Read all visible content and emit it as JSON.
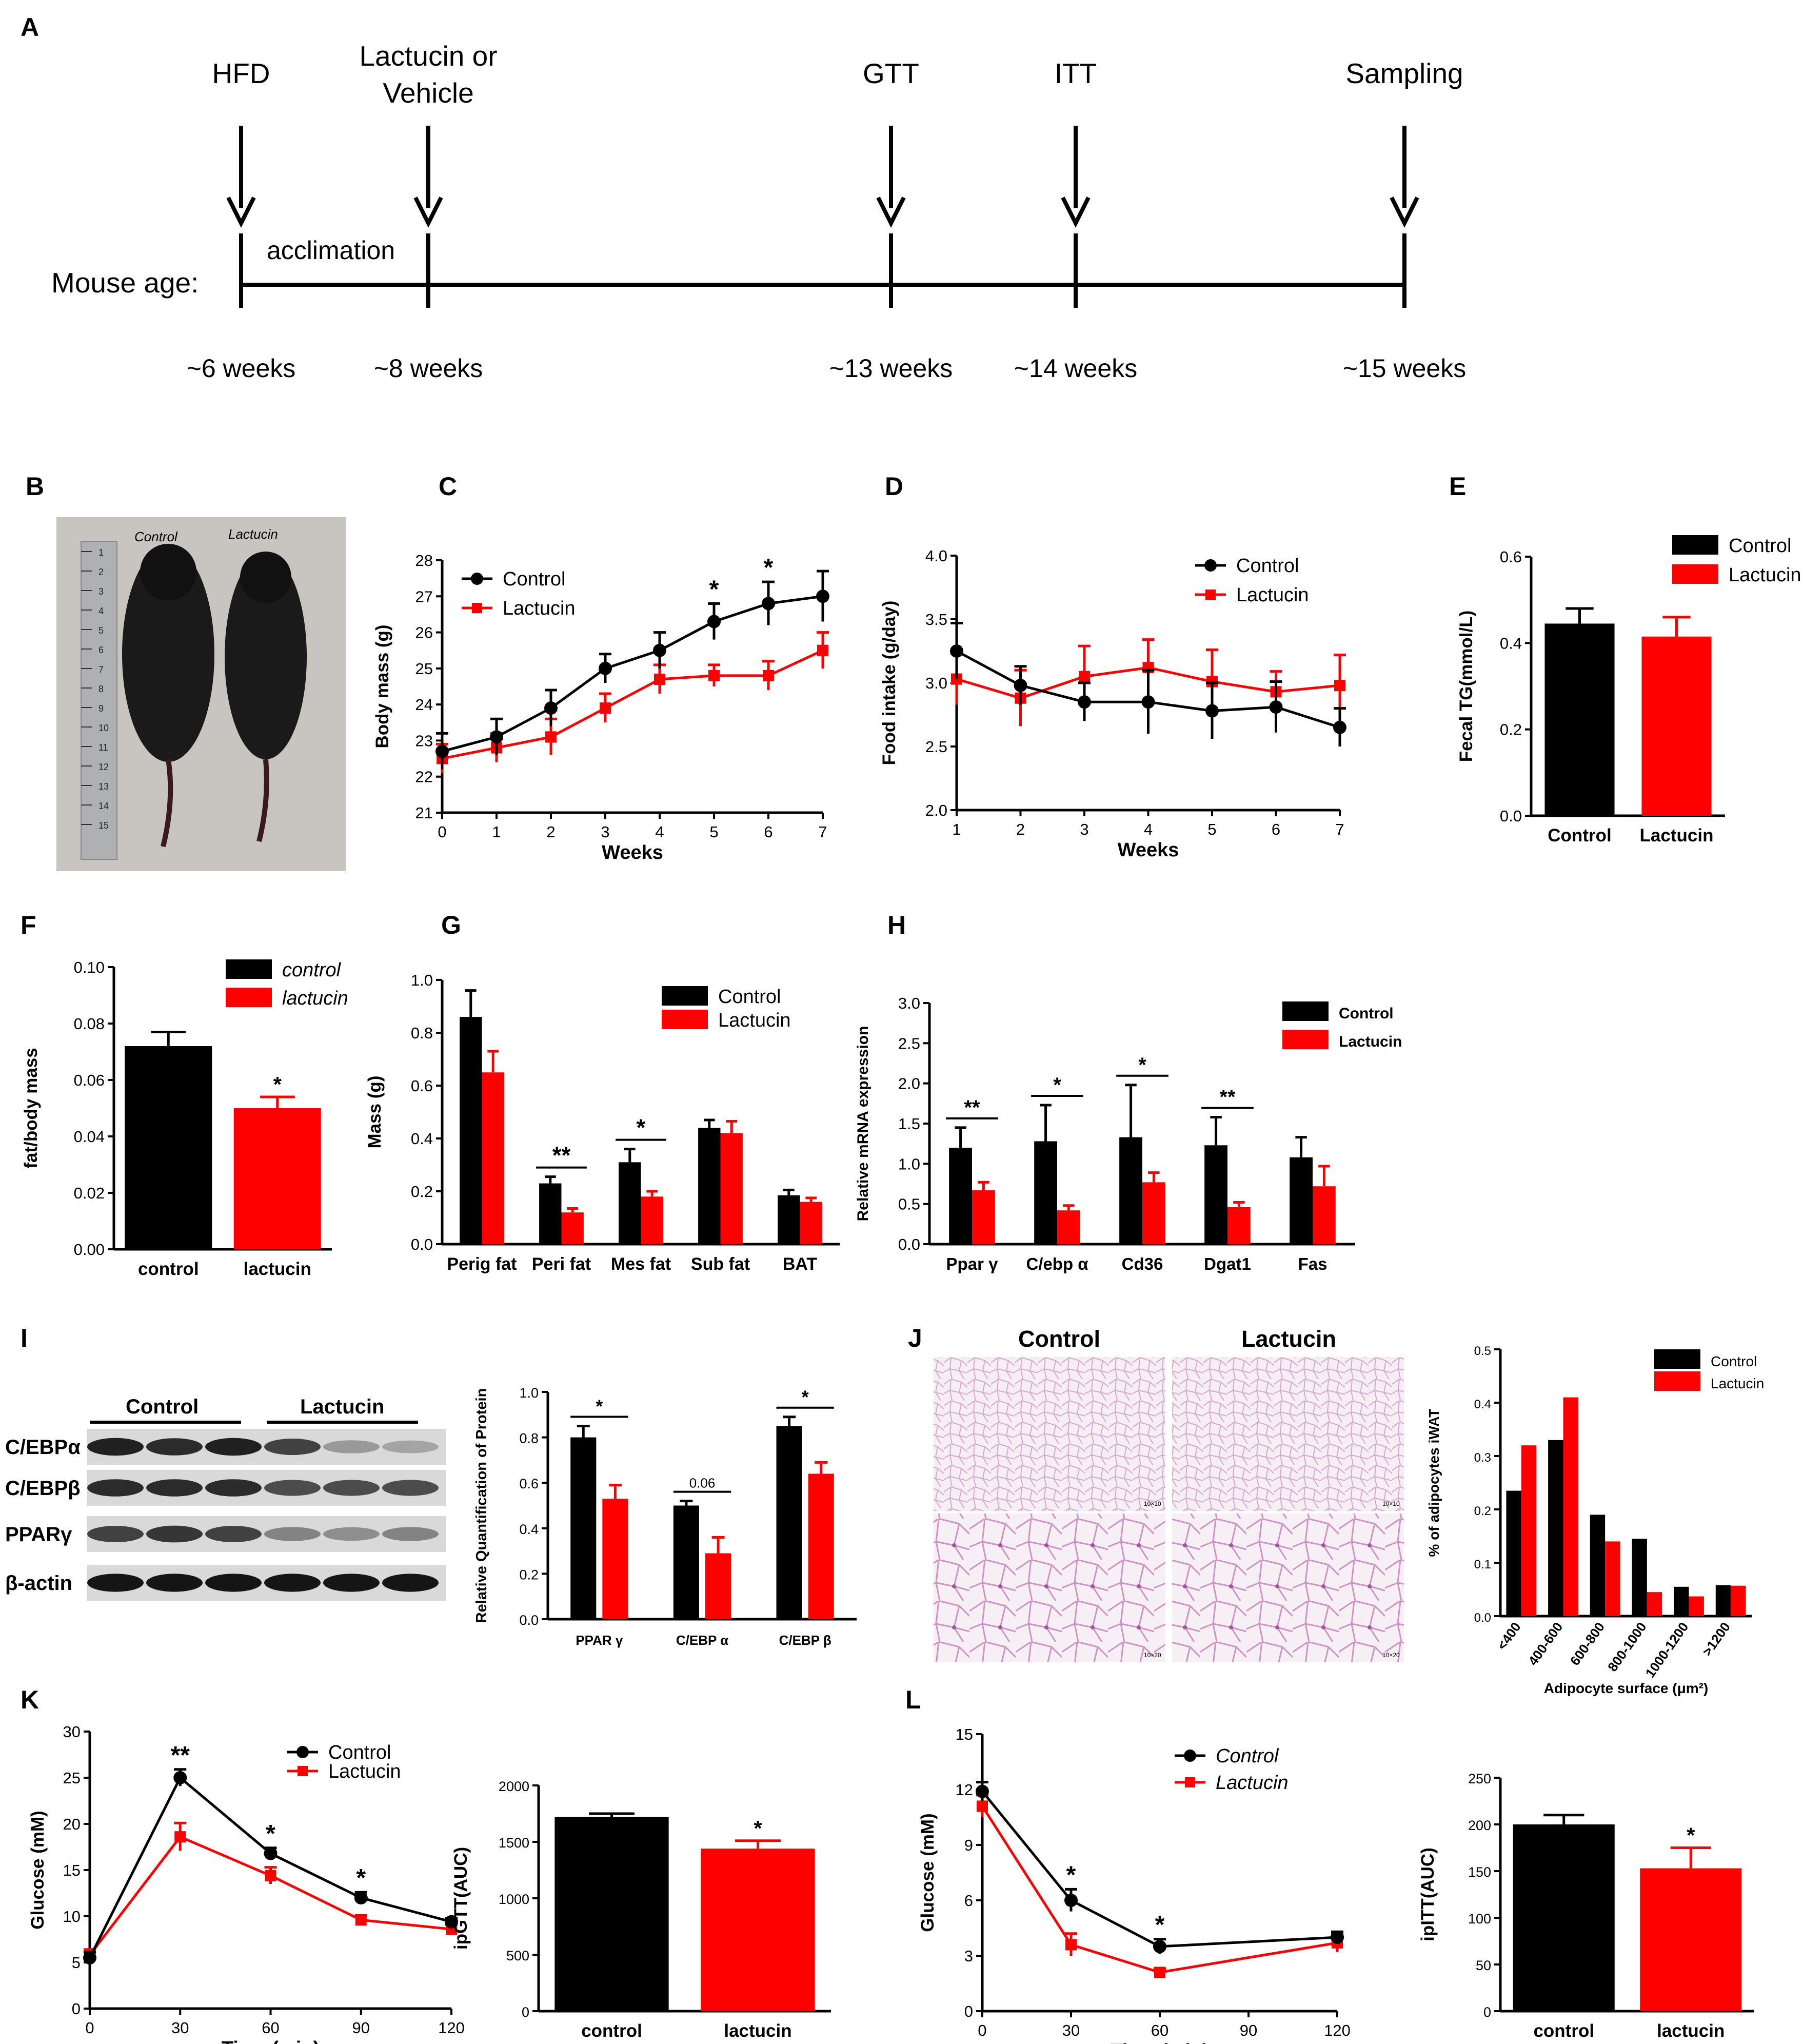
{
  "colors": {
    "control": "#000000",
    "lactucin": "#ff0000"
  },
  "panel_labels": {
    "A": "A",
    "B": "B",
    "C": "C",
    "D": "D",
    "E": "E",
    "F": "F",
    "G": "G",
    "H": "H",
    "I": "I",
    "J": "J",
    "K": "K",
    "L": "L"
  },
  "timeline": {
    "axis_label": "Mouse age:",
    "acclimation": "acclimation",
    "events": [
      {
        "top1": "HFD",
        "top2": "",
        "age": "~6 weeks",
        "week": 6
      },
      {
        "top1": "Lactucin or",
        "top2": "Vehicle",
        "age": "~8 weeks",
        "week": 8
      },
      {
        "top1": "GTT",
        "top2": "",
        "age": "~13 weeks",
        "week": 13
      },
      {
        "top1": "ITT",
        "top2": "",
        "age": "~14 weeks",
        "week": 14
      },
      {
        "top1": "Sampling",
        "top2": "",
        "age": "~15 weeks",
        "week": 15
      }
    ]
  },
  "photo": {
    "left_label": "Control",
    "right_label": "Lactucin",
    "ruler_marks": [
      "1",
      "2",
      "3",
      "4",
      "5",
      "6",
      "7",
      "8",
      "9",
      "10",
      "11",
      "12",
      "13",
      "14",
      "15"
    ]
  },
  "western": {
    "group_control": "Control",
    "group_lactucin": "Lactucin",
    "rows": [
      {
        "label": "C/EBPα",
        "intensities": [
          0.9,
          0.85,
          0.9,
          0.75,
          0.35,
          0.3
        ]
      },
      {
        "label": "C/EBPβ",
        "intensities": [
          0.85,
          0.85,
          0.85,
          0.7,
          0.7,
          0.7
        ]
      },
      {
        "label": "PPARγ",
        "intensities": [
          0.75,
          0.8,
          0.75,
          0.45,
          0.4,
          0.45
        ]
      },
      {
        "label": "β-actin",
        "intensities": [
          0.95,
          0.95,
          0.95,
          0.95,
          0.95,
          0.95
        ]
      }
    ]
  },
  "histology": {
    "col_control": "Control",
    "col_lactucin": "Lactucin",
    "mag_top": "10×10",
    "mag_bottom": "10×20"
  },
  "chart_data": [
    {
      "id": "C",
      "type": "line",
      "xlabel": "Weeks",
      "ylabel": "Body mass (g)",
      "x": [
        0,
        1,
        2,
        3,
        4,
        5,
        6,
        7
      ],
      "xlim": [
        0,
        7
      ],
      "ylim": [
        21,
        28
      ],
      "xticks": [
        "0",
        "1",
        "2",
        "3",
        "4",
        "5",
        "6",
        "7"
      ],
      "yticks": [
        "21",
        "22",
        "23",
        "24",
        "25",
        "26",
        "27",
        "28"
      ],
      "series": [
        {
          "name": "Control",
          "values": [
            22.7,
            23.1,
            23.9,
            25.0,
            25.5,
            26.3,
            26.8,
            27.0
          ],
          "err": [
            0.5,
            0.5,
            0.5,
            0.4,
            0.5,
            0.5,
            0.6,
            0.7
          ]
        },
        {
          "name": "Lactucin",
          "values": [
            22.5,
            22.8,
            23.1,
            23.9,
            24.7,
            24.8,
            24.8,
            25.5
          ],
          "err": [
            0.4,
            0.4,
            0.5,
            0.4,
            0.4,
            0.3,
            0.4,
            0.5
          ]
        }
      ],
      "annotations": [
        {
          "x": 5,
          "text": "*"
        },
        {
          "x": 6,
          "text": "*"
        }
      ],
      "legend": "top-left"
    },
    {
      "id": "D",
      "type": "line",
      "xlabel": "Weeks",
      "ylabel": "Food intake (g/day)",
      "x": [
        1,
        2,
        3,
        4,
        5,
        6,
        7
      ],
      "xlim": [
        1,
        7
      ],
      "ylim": [
        2.0,
        4.0
      ],
      "xticks": [
        "1",
        "2",
        "3",
        "4",
        "5",
        "6",
        "7"
      ],
      "yticks": [
        "2.0",
        "2.5",
        "3.0",
        "3.5",
        "4.0"
      ],
      "series": [
        {
          "name": "Control",
          "values": [
            3.25,
            2.98,
            2.85,
            2.85,
            2.78,
            2.81,
            2.65
          ],
          "err": [
            0.22,
            0.15,
            0.15,
            0.25,
            0.22,
            0.2,
            0.15
          ]
        },
        {
          "name": "Lactucin",
          "values": [
            3.03,
            2.88,
            3.05,
            3.12,
            3.01,
            2.93,
            2.98
          ],
          "err": [
            0.2,
            0.22,
            0.24,
            0.22,
            0.25,
            0.16,
            0.24
          ]
        }
      ],
      "legend": "top-right"
    },
    {
      "id": "E",
      "type": "bar",
      "ylabel": "Fecal TG(mmol/L)",
      "categories": [
        "Control",
        "Lactucin"
      ],
      "values": [
        0.445,
        0.415
      ],
      "err": [
        0.035,
        0.045
      ],
      "ylim": [
        0,
        0.6
      ],
      "yticks": [
        "0.0",
        "0.2",
        "0.4",
        "0.6"
      ],
      "legend": "top-right"
    },
    {
      "id": "F",
      "type": "bar",
      "ylabel": "fat/body mass",
      "categories": [
        "control",
        "lactucin"
      ],
      "values": [
        0.072,
        0.05
      ],
      "err": [
        0.005,
        0.004
      ],
      "ylim": [
        0,
        0.1
      ],
      "yticks": [
        "0.00",
        "0.02",
        "0.04",
        "0.06",
        "0.08",
        "0.10"
      ],
      "annotations": [
        "",
        "*"
      ],
      "legend_names": [
        "control",
        "lactucin"
      ],
      "legend": "top-right"
    },
    {
      "id": "G",
      "type": "bar",
      "ylabel": "Mass (g)",
      "categories": [
        "Perig fat",
        "Peri fat",
        "Mes fat",
        "Sub fat",
        "BAT"
      ],
      "series": [
        {
          "name": "Control",
          "values": [
            0.86,
            0.23,
            0.31,
            0.44,
            0.185
          ],
          "err": [
            0.1,
            0.025,
            0.05,
            0.03,
            0.02
          ]
        },
        {
          "name": "Lactucin",
          "values": [
            0.65,
            0.12,
            0.18,
            0.42,
            0.16
          ],
          "err": [
            0.08,
            0.015,
            0.02,
            0.045,
            0.015
          ]
        }
      ],
      "ylim": [
        0,
        1.0
      ],
      "yticks": [
        "0.0",
        "0.2",
        "0.4",
        "0.6",
        "0.8",
        "1.0"
      ],
      "significance": [
        "",
        "**",
        "*",
        "",
        ""
      ],
      "legend": "top-right"
    },
    {
      "id": "H",
      "type": "bar",
      "ylabel": "Relative mRNA expression",
      "categories": [
        "Ppar γ",
        "C/ebp α",
        "Cd36",
        "Dgat1",
        "Fas"
      ],
      "series": [
        {
          "name": "Control",
          "values": [
            1.2,
            1.28,
            1.33,
            1.23,
            1.08
          ],
          "err": [
            0.25,
            0.45,
            0.65,
            0.35,
            0.25
          ]
        },
        {
          "name": "Lactucin",
          "values": [
            0.67,
            0.42,
            0.77,
            0.46,
            0.72
          ],
          "err": [
            0.1,
            0.06,
            0.12,
            0.06,
            0.25
          ]
        }
      ],
      "ylim": [
        0,
        3.0
      ],
      "yticks": [
        "0.0",
        "0.5",
        "1.0",
        "1.5",
        "2.0",
        "2.5",
        "3.0"
      ],
      "significance": [
        "**",
        "*",
        "*",
        "**",
        ""
      ],
      "legend": "top-right"
    },
    {
      "id": "I",
      "type": "bar",
      "ylabel": "Relative Quantification of Protein",
      "categories": [
        "PPAR γ",
        "C/EBP α",
        "C/EBP β"
      ],
      "series": [
        {
          "name": "Control",
          "values": [
            0.8,
            0.5,
            0.85
          ],
          "err": [
            0.05,
            0.02,
            0.04
          ]
        },
        {
          "name": "Lactucin",
          "values": [
            0.53,
            0.29,
            0.64
          ],
          "err": [
            0.06,
            0.07,
            0.05
          ]
        }
      ],
      "ylim": [
        0,
        1.0
      ],
      "yticks": [
        "0.0",
        "0.2",
        "0.4",
        "0.6",
        "0.8",
        "1.0"
      ],
      "significance": [
        "*",
        "0.06",
        "*"
      ]
    },
    {
      "id": "J",
      "type": "bar",
      "xlabel": "Adipocyte surface (μm²)",
      "ylabel": "% of adipocytes iWAT",
      "categories": [
        "<400",
        "400-600",
        "600-800",
        "800-1000",
        "1000-1200",
        ">1200"
      ],
      "series": [
        {
          "name": "Control",
          "values": [
            0.235,
            0.33,
            0.19,
            0.145,
            0.055,
            0.058
          ]
        },
        {
          "name": "Lactucin",
          "values": [
            0.32,
            0.41,
            0.14,
            0.045,
            0.037,
            0.057
          ]
        }
      ],
      "ylim": [
        0,
        0.5
      ],
      "yticks": [
        "0.0",
        "0.1",
        "0.2",
        "0.3",
        "0.4",
        "0.5"
      ],
      "legend": "top-right"
    },
    {
      "id": "K",
      "type": "line",
      "xlabel": "Time (min)",
      "ylabel": "Glucose (mM)",
      "x": [
        0,
        30,
        60,
        90,
        120
      ],
      "xlim": [
        0,
        120
      ],
      "ylim": [
        0,
        30
      ],
      "xticks": [
        "0",
        "30",
        "60",
        "90",
        "120"
      ],
      "yticks": [
        "0",
        "5",
        "10",
        "15",
        "20",
        "25",
        "30"
      ],
      "series": [
        {
          "name": "Control",
          "values": [
            5.5,
            25.0,
            16.8,
            12.0,
            9.4
          ],
          "err": [
            0.6,
            0.9,
            0.6,
            0.6,
            0.4
          ]
        },
        {
          "name": "Lactucin",
          "values": [
            5.8,
            18.6,
            14.4,
            9.6,
            8.6
          ],
          "err": [
            0.6,
            1.5,
            0.9,
            0.5,
            0.5
          ]
        }
      ],
      "annotations": [
        {
          "x": 30,
          "text": "**"
        },
        {
          "x": 60,
          "text": "*"
        },
        {
          "x": 90,
          "text": "*"
        }
      ],
      "legend": "top-right"
    },
    {
      "id": "K2",
      "type": "bar",
      "ylabel": "ipGTT(AUC)",
      "categories": [
        "control",
        "lactucin"
      ],
      "values": [
        1720,
        1440
      ],
      "err": [
        30,
        70
      ],
      "ylim": [
        0,
        2000
      ],
      "yticks": [
        "0",
        "500",
        "1000",
        "1500",
        "2000"
      ],
      "annotations": [
        "",
        "*"
      ]
    },
    {
      "id": "L",
      "type": "line",
      "xlabel": "Time (min)",
      "ylabel": "Glucose (mM)",
      "x": [
        0,
        30,
        60,
        90,
        120
      ],
      "xlim": [
        0,
        120
      ],
      "ylim": [
        0,
        15
      ],
      "xticks": [
        "0",
        "30",
        "60",
        "90",
        "120"
      ],
      "yticks": [
        "0",
        "3",
        "6",
        "9",
        "12",
        "15"
      ],
      "series": [
        {
          "name": "Control",
          "x": [
            0,
            30,
            60,
            120
          ],
          "values": [
            11.9,
            6.0,
            3.5,
            4.0
          ],
          "err": [
            0.5,
            0.6,
            0.4,
            0.3
          ]
        },
        {
          "name": "Lactucin",
          "x": [
            0,
            30,
            60,
            120
          ],
          "values": [
            11.1,
            3.6,
            2.1,
            3.7
          ],
          "err": [
            0.6,
            0.6,
            0.2,
            0.5
          ]
        }
      ],
      "annotations": [
        {
          "x": 30,
          "text": "*"
        },
        {
          "x": 60,
          "text": "*"
        }
      ],
      "legend": "top-left",
      "legend_names": [
        "Control",
        "Lactucin"
      ]
    },
    {
      "id": "L2",
      "type": "bar",
      "ylabel": "ipITT(AUC)",
      "categories": [
        "control",
        "lactucin"
      ],
      "values": [
        200,
        153
      ],
      "err": [
        10,
        22
      ],
      "ylim": [
        0,
        250
      ],
      "yticks": [
        "0",
        "50",
        "100",
        "150",
        "200",
        "250"
      ],
      "annotations": [
        "",
        "*"
      ]
    }
  ]
}
